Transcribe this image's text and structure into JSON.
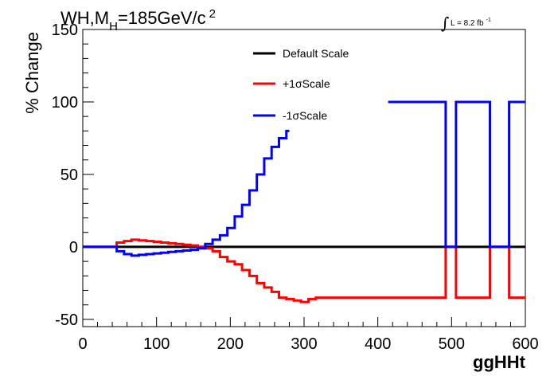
{
  "chart_data": {
    "type": "line",
    "title_main": "WH,M",
    "title_sub": "H",
    "title_value": "=185GeV/c",
    "title_sup": "2",
    "lumi_label": "L = 8.2 fb",
    "lumi_sup": "-1",
    "xlabel": "ggHHt",
    "ylabel": "% Change",
    "xlim": [
      0,
      600
    ],
    "ylim": [
      -55,
      150
    ],
    "x_ticks": [
      0,
      100,
      200,
      300,
      400,
      500,
      600
    ],
    "y_ticks": [
      -50,
      0,
      50,
      100,
      150
    ],
    "x_tick_labels": [
      "0",
      "100",
      "200",
      "300",
      "400",
      "500",
      "600"
    ],
    "y_tick_labels": [
      "-50",
      "0",
      "50",
      "100",
      "150"
    ],
    "legend": {
      "position": "top-center"
    },
    "series": [
      {
        "name": "Default Scale",
        "color": "#000000",
        "step_x": [
          0,
          600
        ],
        "step_y": [
          0
        ]
      },
      {
        "name": "+1σScale",
        "color": "#ff0000",
        "step_x": [
          0,
          46,
          56,
          66,
          76,
          86,
          96,
          106,
          116,
          126,
          136,
          146,
          156,
          166,
          176,
          186,
          196,
          206,
          216,
          226,
          236,
          246,
          256,
          266,
          276,
          286,
          296,
          306,
          316,
          326,
          336,
          346,
          356,
          366,
          376,
          386,
          396,
          406,
          416,
          426,
          436,
          446,
          456,
          466,
          476,
          486,
          492,
          506,
          552,
          578,
          600
        ],
        "step_y": [
          0,
          3,
          4,
          5,
          4.5,
          4,
          3.5,
          3,
          2.5,
          2,
          1.5,
          1,
          0,
          -1,
          -3,
          -7,
          -10,
          -12,
          -16,
          -20,
          -25,
          -28,
          -31,
          -35,
          -36,
          -37,
          -38,
          -36,
          -35,
          -35,
          -35,
          -35,
          -35,
          -35,
          -35,
          -35,
          -35,
          -35,
          -35,
          -35,
          -35,
          -35,
          -35,
          -35,
          -35,
          -35,
          0,
          -35,
          0,
          -35
        ]
      },
      {
        "name": "-1σScale",
        "color": "#0000ff",
        "step_x": [
          0,
          46,
          56,
          66,
          76,
          86,
          96,
          106,
          116,
          126,
          136,
          146,
          156,
          166,
          176,
          186,
          196,
          206,
          216,
          226,
          236,
          246,
          256,
          266,
          276,
          280
        ],
        "step_y": [
          0,
          -3,
          -5,
          -6,
          -5.5,
          -5,
          -4.5,
          -4,
          -3.5,
          -3,
          -2.5,
          -2,
          -1,
          2,
          5,
          8,
          13,
          21,
          29,
          39,
          50,
          61,
          69,
          75,
          80
        ],
        "step2_x": [
          414,
          492,
          506,
          552,
          578,
          600
        ],
        "step2_y": [
          100,
          0,
          100,
          0,
          100
        ]
      }
    ]
  }
}
